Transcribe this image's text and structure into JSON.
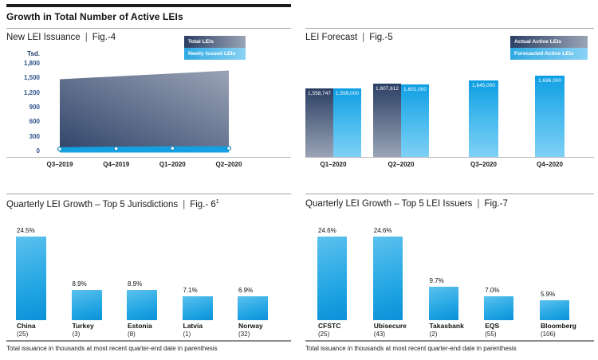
{
  "ui": {
    "pipe": "|"
  },
  "page": {
    "title": "Growth in Total Number of Active LEIs",
    "footnote": "Total issuance in thousands at most recent quarter-end date in parenthesis"
  },
  "colors": {
    "dark_navy": "#2b3f63",
    "slate_light": "#9aa4b6",
    "bright_blue": "#14a0e1",
    "sky_blue": "#7fd0f5",
    "tick_blue": "#2f538b"
  },
  "chart_data": [
    {
      "id": "fig4",
      "type": "area",
      "title": "New LEI Issuance",
      "figure": "Fig.-4",
      "ylabel": "Tsd.",
      "x": [
        "Q3–2019",
        "Q4–2019",
        "Q1–2020",
        "Q2–2020"
      ],
      "series": [
        {
          "name": "Total LEIs",
          "values": [
            1480,
            1540,
            1600,
            1660
          ]
        },
        {
          "name": "Newly Issued LEIs",
          "values": [
            45,
            55,
            62,
            63
          ]
        }
      ],
      "ylim": [
        0,
        1800
      ],
      "yticks": [
        0,
        300,
        600,
        900,
        1200,
        1500,
        1800
      ],
      "ytick_labels": [
        "0",
        "300",
        "600",
        "900",
        "1,200",
        "1,500",
        "1,800"
      ],
      "legend_position": "top-right",
      "note": "values in thousands (Tsd.), estimated from axis gridlines"
    },
    {
      "id": "fig5",
      "type": "bar",
      "title": "LEI Forecast",
      "figure": "Fig.-5",
      "categories": [
        "Q1–2020",
        "Q2–2020",
        "Q3–2020",
        "Q4–2020"
      ],
      "series": [
        {
          "name": "Actual Active LEIs",
          "values": [
            1558747,
            1607612,
            null,
            null
          ],
          "labels": [
            "1,558,747",
            "1,607,612",
            null,
            null
          ]
        },
        {
          "name": "Forecasted Active LEIs",
          "values": [
            1559000,
            1601000,
            1645000,
            1696000
          ],
          "labels": [
            "1,559,000",
            "1,601,000",
            "1,645,000",
            "1,696,000"
          ]
        }
      ],
      "data_labels": "inside-top",
      "legend_position": "top-right"
    },
    {
      "id": "fig6",
      "type": "bar",
      "title": "Quarterly LEI Growth – Top 5 Jurisdictions",
      "figure": "Fig.- 6",
      "figure_sup": "1",
      "categories": [
        "China",
        "Turkey",
        "Estonia",
        "Latvia",
        "Norway"
      ],
      "category_notes": [
        "(25)",
        "(3)",
        "(8)",
        "(1)",
        "(32)"
      ],
      "values": [
        24.5,
        8.9,
        8.9,
        7.1,
        6.9
      ],
      "labels": [
        "24.5%",
        "8.9%",
        "8.9%",
        "7.1%",
        "6.9%"
      ],
      "data_labels": "above"
    },
    {
      "id": "fig7",
      "type": "bar",
      "title": "Quarterly LEI Growth – Top 5 LEI Issuers",
      "figure": "Fig.-7",
      "categories": [
        "CFSTC",
        "Ubisecure",
        "Takasbank",
        "EQS",
        "Bloomberg"
      ],
      "category_notes": [
        "(25)",
        "(43)",
        "(2)",
        "(55)",
        "(106)"
      ],
      "values": [
        24.6,
        24.6,
        9.7,
        7.0,
        5.9
      ],
      "labels": [
        "24.6%",
        "24.6%",
        "9.7%",
        "7.0%",
        "5.9%"
      ],
      "data_labels": "above"
    }
  ]
}
